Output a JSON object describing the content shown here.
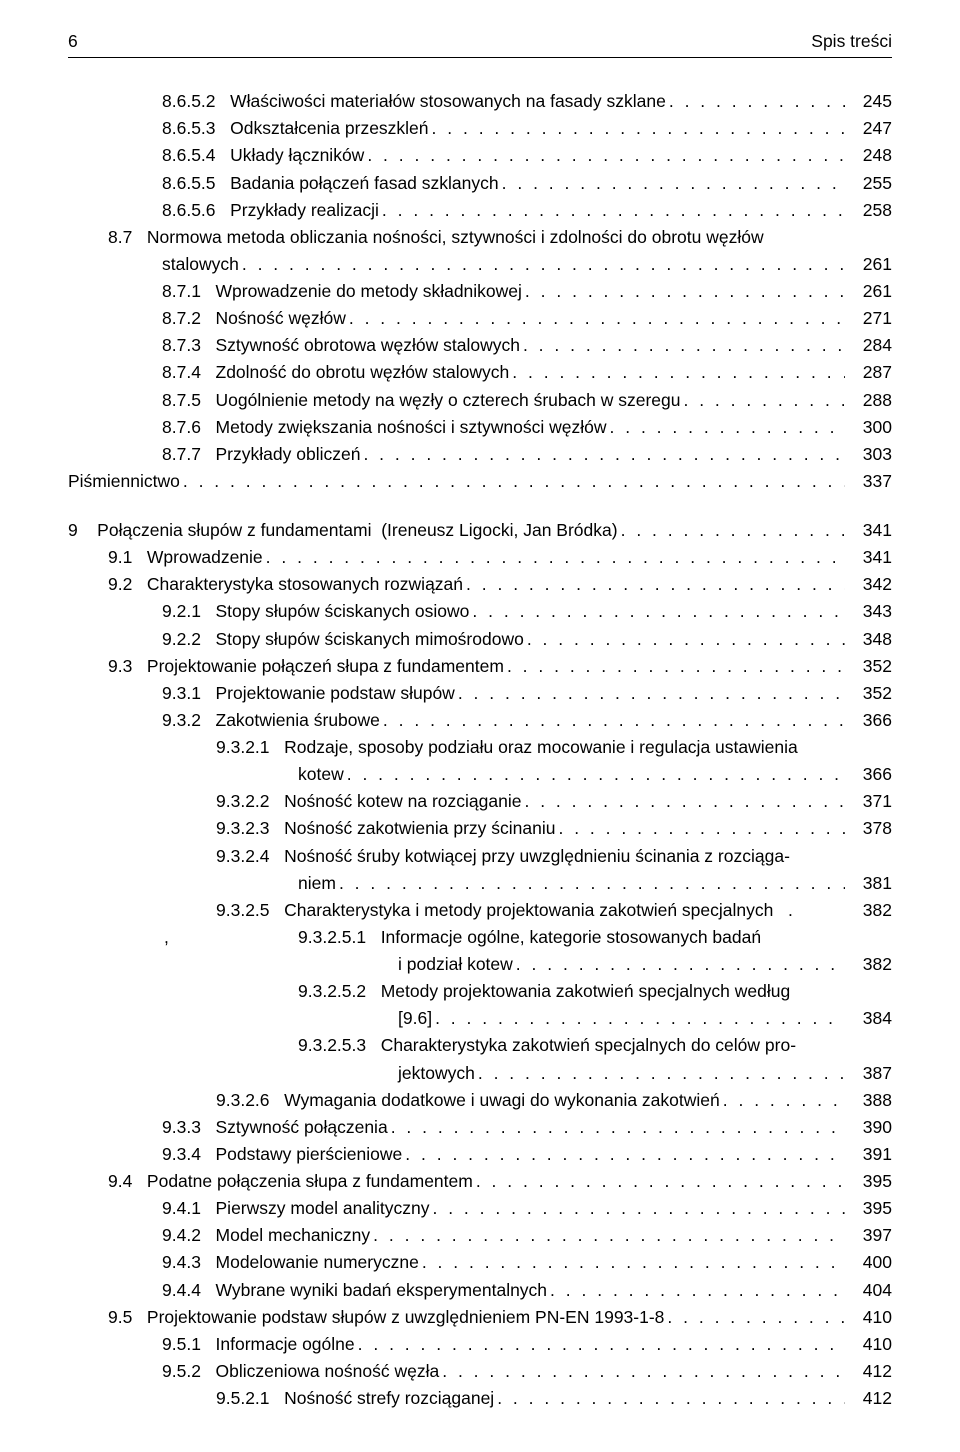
{
  "header": {
    "page_number": "6",
    "title": "Spis treści"
  },
  "indent": {
    "col_chapter": 0,
    "col_section": 40,
    "col_subsection": 94,
    "col_subsubsection": 148,
    "col_sub4": 202,
    "col_sub5": 256,
    "col_sub5_cont": 330
  },
  "leader": ". . . . . . . . . . . . . . . . . . . . . . . . . . . . . . . . . . . . . . . . . . . . . . . . . . . . . . . . . . . . . . . . . . . . . . . . . . . . . . . . . . . . . . . . . . . . . . . . . . . . . . . . . . . . . . . . . . . . . . . . . . . . . . . . . . . . . . . .",
  "entries": [
    {
      "indent": 94,
      "number": "8.6.5.2",
      "text": "Właściwości materiałów stosowanych na fasady szklane",
      "page": "245"
    },
    {
      "indent": 94,
      "number": "8.6.5.3",
      "text": "Odkształcenia przeszkleń",
      "page": "247"
    },
    {
      "indent": 94,
      "number": "8.6.5.4",
      "text": "Układy łączników",
      "page": "248"
    },
    {
      "indent": 94,
      "number": "8.6.5.5",
      "text": "Badania połączeń fasad szklanych",
      "page": "255"
    },
    {
      "indent": 94,
      "number": "8.6.5.6",
      "text": "Przykłady realizacji",
      "page": "258"
    },
    {
      "indent": 40,
      "number": "8.7",
      "text": "Normowa metoda obliczania nośności, sztywności i zdolności do obrotu węzłów",
      "wrap": "stalowych",
      "wrap_indent": 94,
      "page": "261"
    },
    {
      "indent": 94,
      "number": "8.7.1",
      "text": "Wprowadzenie do metody składnikowej",
      "page": "261"
    },
    {
      "indent": 94,
      "number": "8.7.2",
      "text": "Nośność węzłów",
      "page": "271"
    },
    {
      "indent": 94,
      "number": "8.7.3",
      "text": "Sztywność obrotowa węzłów stalowych",
      "page": "284"
    },
    {
      "indent": 94,
      "number": "8.7.4",
      "text": "Zdolność do obrotu węzłów stalowych",
      "page": "287"
    },
    {
      "indent": 94,
      "number": "8.7.5",
      "text": "Uogólnienie metody na węzły o czterech śrubach w szeregu",
      "page": "288"
    },
    {
      "indent": 94,
      "number": "8.7.6",
      "text": "Metody zwiększania nośności i sztywności węzłów",
      "page": "300"
    },
    {
      "indent": 94,
      "number": "8.7.7",
      "text": "Przykłady obliczeń",
      "page": "303"
    },
    {
      "indent": 0,
      "number": "",
      "text": "Piśmiennictwo",
      "page": "337"
    },
    {
      "spacer": true
    },
    {
      "indent": 0,
      "number": "9",
      "text": "Połączenia słupów z fundamentami  (Ireneusz Ligocki, Jan Bródka)",
      "page": "341",
      "num_pad": true
    },
    {
      "indent": 40,
      "number": "9.1",
      "text": "Wprowadzenie",
      "page": "341"
    },
    {
      "indent": 40,
      "number": "9.2",
      "text": "Charakterystyka stosowanych rozwiązań",
      "page": "342"
    },
    {
      "indent": 94,
      "number": "9.2.1",
      "text": "Stopy słupów ściskanych osiowo",
      "page": "343"
    },
    {
      "indent": 94,
      "number": "9.2.2",
      "text": "Stopy słupów ściskanych mimośrodowo",
      "page": "348"
    },
    {
      "indent": 40,
      "number": "9.3",
      "text": "Projektowanie połączeń słupa z fundamentem",
      "page": "352"
    },
    {
      "indent": 94,
      "number": "9.3.1",
      "text": "Projektowanie podstaw słupów",
      "page": "352"
    },
    {
      "indent": 94,
      "number": "9.3.2",
      "text": "Zakotwienia śrubowe",
      "page": "366"
    },
    {
      "indent": 148,
      "number": "9.3.2.1",
      "text": "Rodzaje, sposoby podziału oraz mocowanie i regulacja ustawienia",
      "wrap": "kotew",
      "wrap_indent": 230,
      "page": "366"
    },
    {
      "indent": 148,
      "number": "9.3.2.2",
      "text": "Nośność kotew na rozciąganie",
      "page": "371"
    },
    {
      "indent": 148,
      "number": "9.3.2.3",
      "text": "Nośność zakotwienia przy ścinaniu",
      "page": "378"
    },
    {
      "indent": 148,
      "number": "9.3.2.4",
      "text": "Nośność śruby kotwiącej przy uwzględnieniu ścinania z rozciąga-",
      "wrap": "niem",
      "wrap_indent": 230,
      "page": "381"
    },
    {
      "indent": 148,
      "number": "9.3.2.5",
      "text": "Charakterystyka i metody projektowania zakotwień specjalnych   .",
      "page": "382",
      "no_leader": true
    },
    {
      "indent": 230,
      "number": "9.3.2.5.1",
      "text": "Informacje ogólne, kategorie stosowanych badań",
      "wrap": "i podział kotew",
      "wrap_indent": 330,
      "page": "382",
      "prefix": ","
    },
    {
      "indent": 230,
      "number": "9.3.2.5.2",
      "text": "Metody projektowania zakotwień specjalnych według",
      "wrap": "[9.6]",
      "wrap_indent": 330,
      "page": "384"
    },
    {
      "indent": 230,
      "number": "9.3.2.5.3",
      "text": "Charakterystyka zakotwień specjalnych do celów pro-",
      "wrap": "jektowych",
      "wrap_indent": 330,
      "page": "387"
    },
    {
      "indent": 148,
      "number": "9.3.2.6",
      "text": "Wymagania dodatkowe i uwagi do wykonania zakotwień",
      "page": "388"
    },
    {
      "indent": 94,
      "number": "9.3.3",
      "text": "Sztywność połączenia",
      "page": "390"
    },
    {
      "indent": 94,
      "number": "9.3.4",
      "text": "Podstawy pierścieniowe",
      "page": "391"
    },
    {
      "indent": 40,
      "number": "9.4",
      "text": "Podatne połączenia słupa z fundamentem",
      "page": "395"
    },
    {
      "indent": 94,
      "number": "9.4.1",
      "text": "Pierwszy model analityczny",
      "page": "395"
    },
    {
      "indent": 94,
      "number": "9.4.2",
      "text": "Model mechaniczny",
      "page": "397"
    },
    {
      "indent": 94,
      "number": "9.4.3",
      "text": "Modelowanie numeryczne",
      "page": "400"
    },
    {
      "indent": 94,
      "number": "9.4.4",
      "text": "Wybrane wyniki badań eksperymentalnych",
      "page": "404"
    },
    {
      "indent": 40,
      "number": "9.5",
      "text": "Projektowanie podstaw słupów z uwzględnieniem PN-EN 1993-1-8",
      "page": "410"
    },
    {
      "indent": 94,
      "number": "9.5.1",
      "text": "Informacje ogólne",
      "page": "410"
    },
    {
      "indent": 94,
      "number": "9.5.2",
      "text": "Obliczeniowa nośność węzła",
      "page": "412"
    },
    {
      "indent": 148,
      "number": "9.5.2.1",
      "text": "Nośność strefy rozciąganej",
      "page": "412"
    }
  ]
}
